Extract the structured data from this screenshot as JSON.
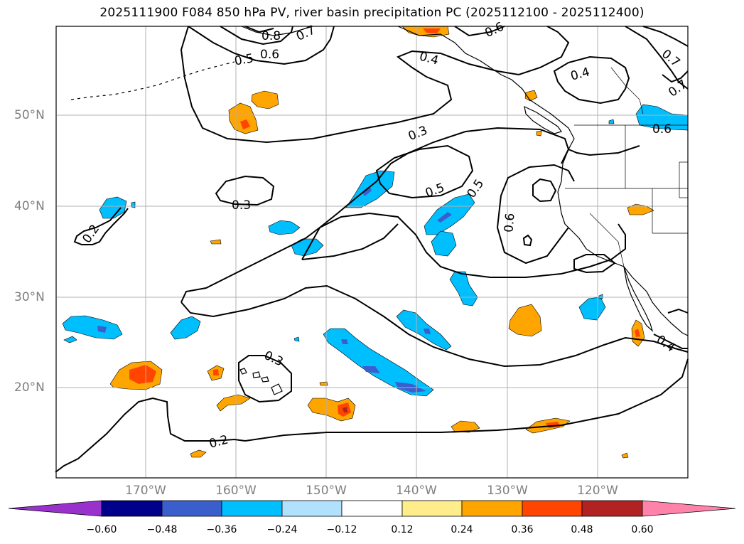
{
  "title": "2025111900 F084 850 hPa PV, river basin precipitation PC (2025112100 - 2025112400)",
  "lat_labels": [
    "50°N",
    "40°N",
    "30°N",
    "20°N"
  ],
  "lon_labels": [
    "170°W",
    "160°W",
    "150°W",
    "140°W",
    "130°W",
    "120°W"
  ],
  "colorbar": {
    "tick_labels": [
      "−0.60",
      "−0.48",
      "−0.36",
      "−0.24",
      "−0.12",
      "0.12",
      "0.24",
      "0.36",
      "0.48",
      "0.60"
    ],
    "colors": [
      "#9932cc",
      "#00008b",
      "#3a5fcd",
      "#00bfff",
      "#b0e2ff",
      "#ffffff",
      "#ffec8b",
      "#ffa500",
      "#ff4500",
      "#b22222",
      "#ff82ab"
    ]
  },
  "contour_labels": [
    "0.8",
    "0.7",
    "0.5",
    "0.6",
    "0.4",
    "0.6",
    "0.4",
    "0.7",
    "0.7",
    "0.6",
    "0.3",
    "0.3",
    "0.5",
    "0.5",
    "0.6",
    "0.2",
    "0.3",
    "0.2",
    "0.4"
  ],
  "colors": {
    "pv_contour": "#000000",
    "grid": "#b0b0b0",
    "coast": "#000000"
  }
}
